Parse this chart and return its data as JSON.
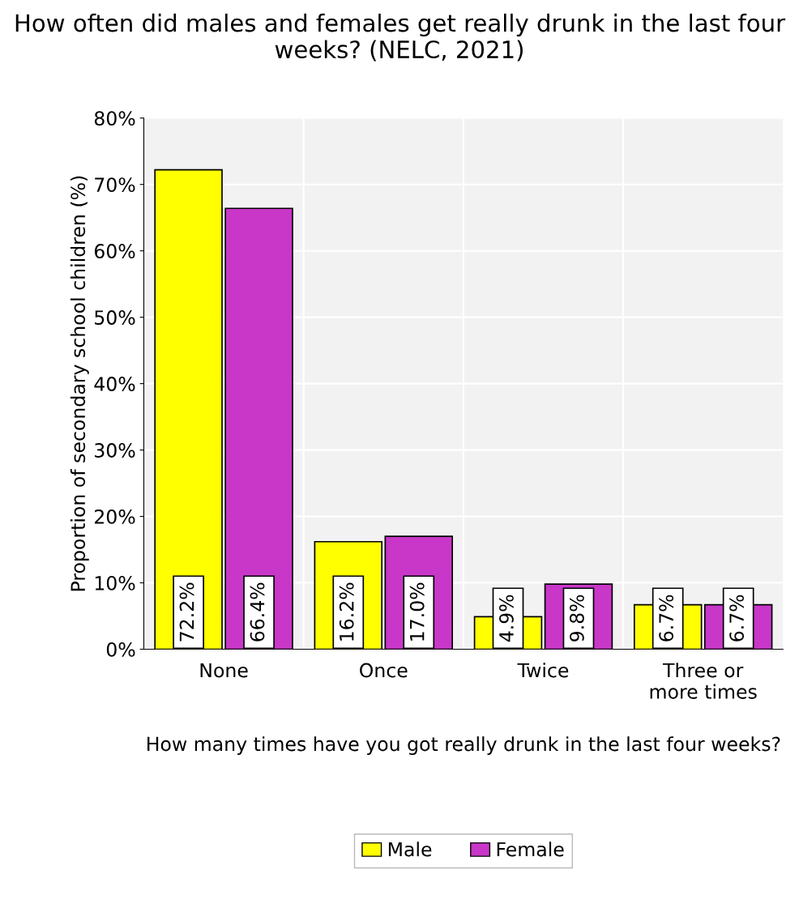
{
  "chart_data": {
    "type": "bar",
    "title": "How often did males and females get really drunk in the last four weeks? (NELC, 2021)",
    "xlabel": "How many times have you got really drunk in the last four weeks?",
    "ylabel": "Proportion of secondary school children (%)",
    "categories": [
      "None",
      "Once",
      "Twice",
      "Three or\nmore times"
    ],
    "series": [
      {
        "name": "Male",
        "color": "#ffff00",
        "values": [
          72.2,
          16.2,
          4.9,
          6.7
        ],
        "value_labels": [
          "72.2%",
          "16.2%",
          "4.9%",
          "6.7%"
        ]
      },
      {
        "name": "Female",
        "color": "#c837c8",
        "values": [
          66.4,
          17.0,
          9.8,
          6.7
        ],
        "value_labels": [
          "66.4%",
          "17.0%",
          "9.8%",
          "6.7%"
        ]
      }
    ],
    "ylim": [
      0,
      80
    ],
    "yticks": [
      {
        "value": 0,
        "label": "0%"
      },
      {
        "value": 10,
        "label": "10%"
      },
      {
        "value": 20,
        "label": "20%"
      },
      {
        "value": 30,
        "label": "30%"
      },
      {
        "value": 40,
        "label": "40%"
      },
      {
        "value": 50,
        "label": "50%"
      },
      {
        "value": 60,
        "label": "60%"
      },
      {
        "value": 70,
        "label": "70%"
      },
      {
        "value": 80,
        "label": "80%"
      }
    ],
    "grid": "y",
    "legend": "bottom"
  }
}
